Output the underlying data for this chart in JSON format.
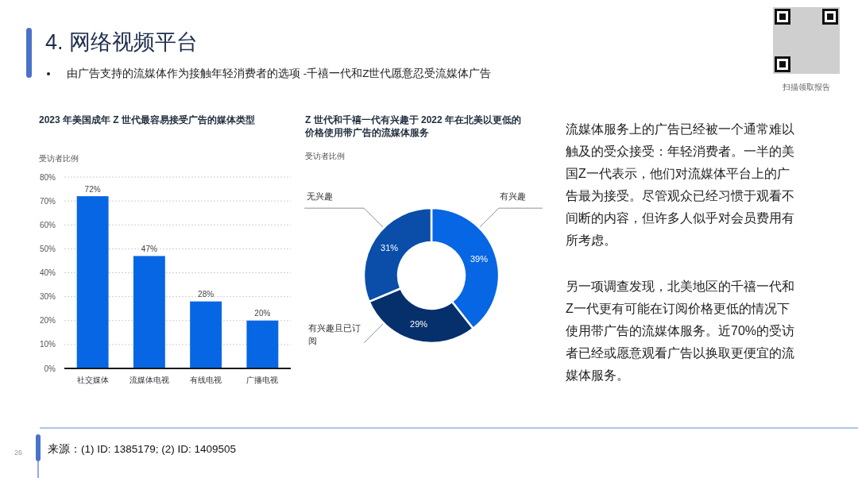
{
  "chart_data": [
    {
      "type": "other",
      "title": "4. 网络视频平台",
      "subtitle": "由广告支持的流媒体作为接触年轻消费者的选项 -千禧一代和Z世代愿意忍受流媒体广告",
      "annotations": [
        "扫描领取报告",
        "来源：(1) ID: 1385179; (2) ID: 1409505",
        "26"
      ]
    },
    {
      "type": "bar",
      "title": "2023 年美国成年 Z 世代最容易接受广告的媒体类型",
      "ylabel": "受访者比例",
      "categories": [
        "社交媒体",
        "流媒体电视",
        "有线电视",
        "广播电视"
      ],
      "values": [
        72,
        47,
        28,
        20
      ],
      "value_labels": [
        "72%",
        "47%",
        "28%",
        "20%"
      ],
      "color": "#0766e3",
      "ylim": [
        0,
        80
      ],
      "yticks": [
        {
          "value": 0,
          "label": "0%"
        },
        {
          "value": 10,
          "label": "10%"
        },
        {
          "value": 20,
          "label": "20%"
        },
        {
          "value": 30,
          "label": "30%"
        },
        {
          "value": 40,
          "label": "40%"
        },
        {
          "value": 50,
          "label": "50%"
        },
        {
          "value": 60,
          "label": "60%"
        },
        {
          "value": 70,
          "label": "70%"
        },
        {
          "value": 80,
          "label": "80%"
        }
      ],
      "grid": "y"
    },
    {
      "type": "donut",
      "title": "Z 世代和千禧一代有兴趣于 2022 年在北美以更低的价格使用带广告的流媒体服务",
      "subtitle": "受访者比例",
      "categories": [
        "有兴趣",
        "有兴趣且已订阅",
        "无兴趣"
      ],
      "values": [
        39,
        29,
        31
      ],
      "value_labels": [
        "39%",
        "29%",
        "31%"
      ],
      "colors": [
        "#0766e3",
        "#06306c",
        "#0a4ea9"
      ]
    },
    {
      "type": "other",
      "annotations": [
        "流媒体服务上的广告已经被一个通常难以触及的受众接受：年轻消费者。一半的美国Z一代表示，他们对流媒体平台上的广告最为接受。尽管观众已经习惯于观看不间断的内容，但许多人似乎对会员费用有所考虑。",
        "另一项调查发现，北美地区的千禧一代和Z一代更有可能在订阅价格更低的情况下使用带广告的流媒体服务。近70%的受访者已经或愿意观看广告以换取更便宜的流媒体服务。"
      ]
    }
  ]
}
